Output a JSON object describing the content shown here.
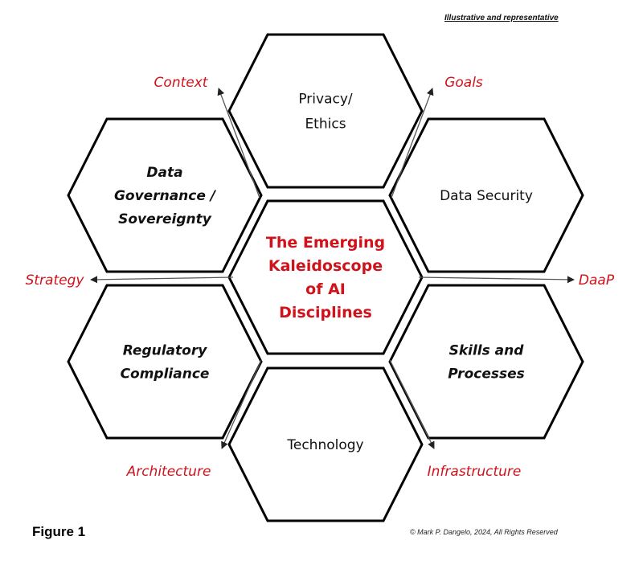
{
  "note": "Illustrative and representative",
  "center": {
    "lines": [
      "The Emerging",
      "Kaleidoscope",
      "of AI",
      "Disciplines"
    ]
  },
  "hexagons": [
    {
      "id": "privacy",
      "lines": [
        "Privacy/",
        "Ethics"
      ],
      "style": "normal"
    },
    {
      "id": "data-governance",
      "lines": [
        "Data",
        "Governance /",
        "Sovereignty"
      ],
      "style": "bold-italic"
    },
    {
      "id": "data-security",
      "lines": [
        "Data Security"
      ],
      "style": "normal"
    },
    {
      "id": "regulatory",
      "lines": [
        "Regulatory",
        "Compliance"
      ],
      "style": "bold-italic"
    },
    {
      "id": "skills",
      "lines": [
        "Skills and",
        "Processes"
      ],
      "style": "bold-italic"
    },
    {
      "id": "technology",
      "lines": [
        "Technology"
      ],
      "style": "normal"
    }
  ],
  "arrows": {
    "context": "Context",
    "goals": "Goals",
    "strategy": "Strategy",
    "daap": "DaaP",
    "architecture": "Architecture",
    "infrastructure": "Infrastructure"
  },
  "figure_label": "Figure 1",
  "copyright": "© Mark P. Dangelo, 2024, All Rights Reserved",
  "colors": {
    "accent": "#d0121b",
    "stroke": "#000000",
    "arrow": "#555555"
  }
}
